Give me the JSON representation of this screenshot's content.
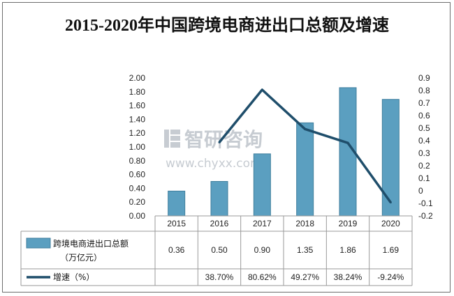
{
  "chart_data": {
    "type": "bar",
    "title": "2015-2020年中国跨境电商进出口总额及增速",
    "categories": [
      "2015",
      "2016",
      "2017",
      "2018",
      "2019",
      "2020"
    ],
    "series": [
      {
        "name": "跨境电商进出口总额\n（万亿元）",
        "type": "bar",
        "axis": "left",
        "color": "#5b9fc0",
        "values": [
          0.36,
          0.5,
          0.9,
          1.35,
          1.86,
          1.69
        ],
        "labels": [
          "0.36",
          "0.50",
          "0.90",
          "1.35",
          "1.86",
          "1.69"
        ]
      },
      {
        "name": "增速（%）",
        "type": "line",
        "axis": "right",
        "color": "#1f4e6b",
        "values": [
          null,
          0.387,
          0.8062,
          0.4927,
          0.3824,
          -0.0924
        ],
        "labels": [
          "",
          "38.70%",
          "80.62%",
          "49.27%",
          "38.24%",
          "-9.24%"
        ]
      }
    ],
    "y_left": {
      "ylim": [
        0,
        2
      ],
      "ticks": [
        "0.00",
        "0.20",
        "0.40",
        "0.60",
        "0.80",
        "1.00",
        "1.20",
        "1.40",
        "1.60",
        "1.80",
        "2.00"
      ]
    },
    "y_right": {
      "ylim": [
        -0.2,
        0.9
      ],
      "ticks": [
        "-0.2",
        "-0.1",
        "0",
        "0.1",
        "0.2",
        "0.3",
        "0.4",
        "0.5",
        "0.6",
        "0.7",
        "0.8",
        "0.9"
      ]
    },
    "data_table": true
  },
  "watermark": {
    "brand": "智研咨询",
    "url": "www.chyxx.com"
  }
}
